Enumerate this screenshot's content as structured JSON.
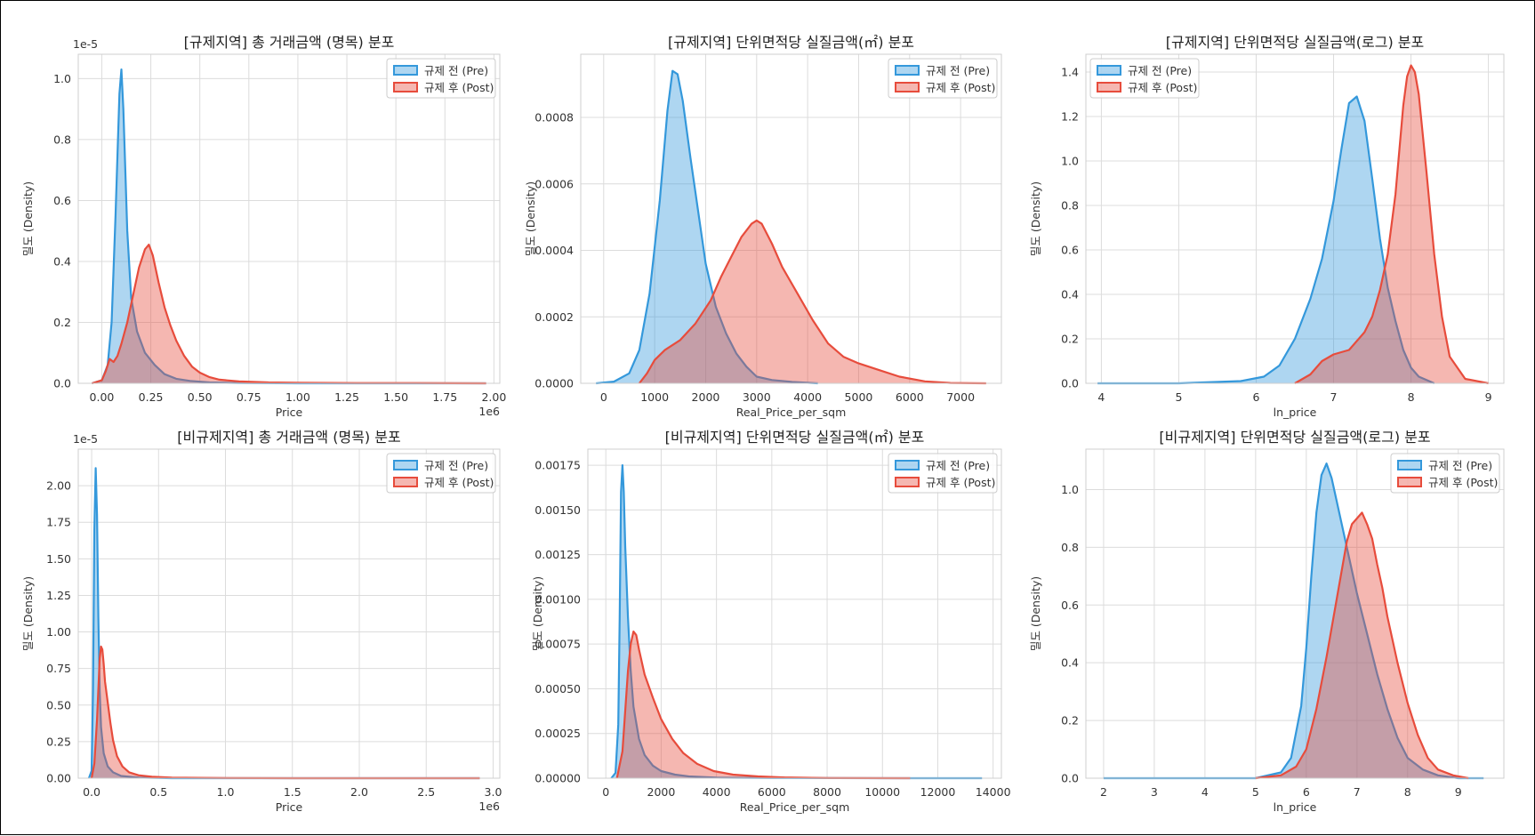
{
  "colors": {
    "pre": "#3498db",
    "post": "#e74c3c",
    "grid": "#dcdcdc",
    "spine": "#cfcfcf"
  },
  "chart_data": [
    {
      "type": "area",
      "title": "[규제지역] 총 거래금액 (명목) 분포",
      "xlabel": "Price",
      "ylabel": "밀도 (Density)",
      "x_offset": "1e6",
      "y_offset": "1e-5",
      "xlim": [
        -0.12,
        2.03
      ],
      "ylim": [
        0,
        1.08
      ],
      "xticks": [
        0,
        0.25,
        0.5,
        0.75,
        1.0,
        1.25,
        1.5,
        1.75,
        2.0
      ],
      "xtick_labels": [
        "0.00",
        "0.25",
        "0.50",
        "0.75",
        "1.00",
        "1.25",
        "1.50",
        "1.75",
        "2.00"
      ],
      "yticks": [
        0,
        0.2,
        0.4,
        0.6,
        0.8,
        1.0
      ],
      "ytick_labels": [
        "0.0",
        "0.2",
        "0.4",
        "0.6",
        "0.8",
        "1.0"
      ],
      "legend_position": "upper right",
      "series": [
        {
          "name": "규제 전 (Pre)",
          "x": [
            -0.05,
            0.0,
            0.03,
            0.05,
            0.07,
            0.09,
            0.1,
            0.11,
            0.13,
            0.15,
            0.18,
            0.22,
            0.27,
            0.32,
            0.38,
            0.45,
            0.55,
            0.7,
            1.0,
            1.5,
            1.96
          ],
          "y": [
            0,
            0.01,
            0.06,
            0.2,
            0.55,
            0.95,
            1.03,
            0.9,
            0.5,
            0.28,
            0.17,
            0.1,
            0.06,
            0.03,
            0.015,
            0.008,
            0.003,
            0.001,
            0,
            0,
            0
          ]
        },
        {
          "name": "규제 후 (Post)",
          "x": [
            -0.05,
            0.0,
            0.02,
            0.04,
            0.06,
            0.08,
            0.1,
            0.13,
            0.16,
            0.19,
            0.22,
            0.24,
            0.26,
            0.29,
            0.32,
            0.35,
            0.38,
            0.42,
            0.46,
            0.5,
            0.55,
            0.6,
            0.7,
            0.85,
            1.0,
            1.3,
            1.6,
            1.96
          ],
          "y": [
            0,
            0.01,
            0.04,
            0.08,
            0.07,
            0.09,
            0.13,
            0.2,
            0.29,
            0.38,
            0.44,
            0.455,
            0.42,
            0.33,
            0.25,
            0.19,
            0.14,
            0.09,
            0.055,
            0.035,
            0.02,
            0.012,
            0.006,
            0.003,
            0.002,
            0.001,
            0.001,
            0
          ]
        }
      ]
    },
    {
      "type": "area",
      "title": "[규제지역] 단위면적당 실질금액(㎡) 분포",
      "xlabel": "Real_Price_per_sqm",
      "ylabel": "밀도 (Density)",
      "x_offset": "",
      "y_offset": "",
      "xlim": [
        -450,
        7800
      ],
      "ylim": [
        0,
        0.00099
      ],
      "xticks": [
        0,
        1000,
        2000,
        3000,
        4000,
        5000,
        6000,
        7000
      ],
      "xtick_labels": [
        "0",
        "1000",
        "2000",
        "3000",
        "4000",
        "5000",
        "6000",
        "7000"
      ],
      "yticks": [
        0,
        0.0002,
        0.0004,
        0.0006,
        0.0008
      ],
      "ytick_labels": [
        "0.0000",
        "0.0002",
        "0.0004",
        "0.0006",
        "0.0008"
      ],
      "legend_position": "upper right",
      "series": [
        {
          "name": "규제 전 (Pre)",
          "x": [
            -150,
            200,
            500,
            700,
            900,
            1100,
            1250,
            1350,
            1450,
            1550,
            1700,
            1850,
            2000,
            2200,
            2400,
            2600,
            2800,
            3000,
            3300,
            3700,
            4200
          ],
          "y": [
            0,
            5e-06,
            3e-05,
            0.0001,
            0.00027,
            0.00055,
            0.00082,
            0.00094,
            0.00093,
            0.00085,
            0.00068,
            0.00052,
            0.00036,
            0.00023,
            0.00015,
            9e-05,
            5e-05,
            2e-05,
            1e-05,
            4e-06,
            0
          ]
        },
        {
          "name": "규제 후 (Post)",
          "x": [
            700,
            850,
            1000,
            1200,
            1500,
            1800,
            2100,
            2300,
            2500,
            2700,
            2900,
            3000,
            3100,
            3300,
            3500,
            3800,
            4100,
            4400,
            4700,
            5000,
            5400,
            5800,
            6300,
            6800,
            7500
          ],
          "y": [
            0,
            3e-05,
            7e-05,
            0.0001,
            0.00013,
            0.00018,
            0.00025,
            0.00032,
            0.00038,
            0.00044,
            0.00048,
            0.00049,
            0.00048,
            0.00042,
            0.00035,
            0.00027,
            0.00019,
            0.00012,
            8e-05,
            6e-05,
            4e-05,
            2e-05,
            6e-06,
            1e-06,
            0
          ]
        }
      ]
    },
    {
      "type": "area",
      "title": "[규제지역] 단위면적당 실질금액(로그) 분포",
      "xlabel": "ln_price",
      "ylabel": "밀도 (Density)",
      "x_offset": "",
      "y_offset": "",
      "xlim": [
        3.8,
        9.2
      ],
      "ylim": [
        0,
        1.48
      ],
      "xticks": [
        4,
        5,
        6,
        7,
        8,
        9
      ],
      "xtick_labels": [
        "4",
        "5",
        "6",
        "7",
        "8",
        "9"
      ],
      "yticks": [
        0,
        0.2,
        0.4,
        0.6,
        0.8,
        1.0,
        1.2,
        1.4
      ],
      "ytick_labels": [
        "0.0",
        "0.2",
        "0.4",
        "0.6",
        "0.8",
        "1.0",
        "1.2",
        "1.4"
      ],
      "legend_position": "upper left",
      "series": [
        {
          "name": "규제 전 (Pre)",
          "x": [
            3.95,
            5.0,
            5.8,
            6.1,
            6.3,
            6.5,
            6.7,
            6.85,
            7.0,
            7.1,
            7.2,
            7.3,
            7.4,
            7.5,
            7.6,
            7.7,
            7.8,
            7.9,
            8.0,
            8.1,
            8.3
          ],
          "y": [
            0,
            0,
            0.01,
            0.03,
            0.08,
            0.2,
            0.38,
            0.56,
            0.82,
            1.05,
            1.26,
            1.29,
            1.18,
            0.92,
            0.65,
            0.43,
            0.28,
            0.15,
            0.07,
            0.03,
            0
          ]
        },
        {
          "name": "규제 후 (Post)",
          "x": [
            6.5,
            6.7,
            6.85,
            7.0,
            7.2,
            7.4,
            7.5,
            7.6,
            7.7,
            7.8,
            7.85,
            7.9,
            7.95,
            8.0,
            8.05,
            8.1,
            8.2,
            8.3,
            8.4,
            8.5,
            8.7,
            9.0
          ],
          "y": [
            0,
            0.04,
            0.1,
            0.13,
            0.15,
            0.23,
            0.3,
            0.42,
            0.58,
            0.85,
            1.05,
            1.25,
            1.38,
            1.43,
            1.4,
            1.3,
            0.95,
            0.58,
            0.3,
            0.12,
            0.02,
            0
          ]
        }
      ]
    },
    {
      "type": "area",
      "title": "[비규제지역] 총 거래금액 (명목) 분포",
      "xlabel": "Price",
      "ylabel": "밀도 (Density)",
      "x_offset": "1e6",
      "y_offset": "1e-5",
      "xlim": [
        -0.1,
        3.05
      ],
      "ylim": [
        0,
        2.25
      ],
      "xticks": [
        0,
        0.5,
        1.0,
        1.5,
        2.0,
        2.5,
        3.0
      ],
      "xtick_labels": [
        "0.0",
        "0.5",
        "1.0",
        "1.5",
        "2.0",
        "2.5",
        "3.0"
      ],
      "yticks": [
        0,
        0.25,
        0.5,
        0.75,
        1.0,
        1.25,
        1.5,
        1.75,
        2.0
      ],
      "ytick_labels": [
        "0.00",
        "0.25",
        "0.50",
        "0.75",
        "1.00",
        "1.25",
        "1.50",
        "1.75",
        "2.00"
      ],
      "legend_position": "upper right",
      "series": [
        {
          "name": "규제 전 (Pre)",
          "x": [
            -0.02,
            0.0,
            0.01,
            0.02,
            0.03,
            0.04,
            0.05,
            0.06,
            0.07,
            0.09,
            0.12,
            0.16,
            0.22,
            0.35,
            0.6,
            1.0,
            2.9
          ],
          "y": [
            0,
            0.05,
            0.6,
            1.7,
            2.12,
            1.8,
            1.1,
            0.6,
            0.35,
            0.17,
            0.08,
            0.04,
            0.015,
            0.004,
            0,
            0,
            0
          ]
        },
        {
          "name": "규제 후 (Post)",
          "x": [
            0.0,
            0.02,
            0.04,
            0.06,
            0.07,
            0.08,
            0.09,
            0.1,
            0.12,
            0.14,
            0.16,
            0.19,
            0.23,
            0.28,
            0.35,
            0.45,
            0.6,
            1.0,
            1.5,
            2.0,
            2.9
          ],
          "y": [
            0,
            0.1,
            0.4,
            0.82,
            0.9,
            0.88,
            0.78,
            0.66,
            0.52,
            0.38,
            0.26,
            0.15,
            0.08,
            0.04,
            0.02,
            0.01,
            0.004,
            0.001,
            0,
            0,
            0
          ]
        }
      ]
    },
    {
      "type": "area",
      "title": "[비규제지역] 단위면적당 실질금액(㎡) 분포",
      "xlabel": "Real_Price_per_sqm",
      "ylabel": "밀도 (Density)",
      "x_offset": "",
      "y_offset": "",
      "xlim": [
        -650,
        14300
      ],
      "ylim": [
        0,
        0.00184
      ],
      "xticks": [
        0,
        2000,
        4000,
        6000,
        8000,
        10000,
        12000,
        14000
      ],
      "xtick_labels": [
        "0",
        "2000",
        "4000",
        "6000",
        "8000",
        "10000",
        "12000",
        "14000"
      ],
      "yticks": [
        0,
        0.00025,
        0.0005,
        0.00075,
        0.001,
        0.00125,
        0.0015,
        0.00175
      ],
      "ytick_labels": [
        "0.00000",
        "0.00025",
        "0.00050",
        "0.00075",
        "0.00100",
        "0.00125",
        "0.00150",
        "0.00175"
      ],
      "legend_position": "upper right",
      "series": [
        {
          "name": "규제 전 (Pre)",
          "x": [
            200,
            350,
            450,
            500,
            550,
            600,
            650,
            700,
            800,
            900,
            1000,
            1200,
            1400,
            1700,
            2000,
            2500,
            3000,
            4000,
            6000,
            10000,
            13600
          ],
          "y": [
            0,
            3e-05,
            0.0003,
            0.0009,
            0.0016,
            0.00175,
            0.0016,
            0.0013,
            0.0009,
            0.0006,
            0.0004,
            0.00022,
            0.00013,
            7e-05,
            4e-05,
            2e-05,
            1e-05,
            3e-06,
            1e-06,
            0,
            0
          ]
        },
        {
          "name": "규제 후 (Post)",
          "x": [
            400,
            600,
            800,
            900,
            1000,
            1100,
            1200,
            1400,
            1700,
            2000,
            2400,
            2800,
            3300,
            3900,
            4600,
            5500,
            6500,
            8000,
            11000
          ],
          "y": [
            0,
            0.00015,
            0.0006,
            0.00075,
            0.00082,
            0.0008,
            0.00072,
            0.00058,
            0.00045,
            0.00033,
            0.00022,
            0.00014,
            8e-05,
            4e-05,
            2e-05,
            1e-05,
            4e-06,
            1e-06,
            0
          ]
        }
      ]
    },
    {
      "type": "area",
      "title": "[비규제지역] 단위면적당 실질금액(로그) 분포",
      "xlabel": "ln_price",
      "ylabel": "밀도 (Density)",
      "x_offset": "",
      "y_offset": "",
      "xlim": [
        1.65,
        9.9
      ],
      "ylim": [
        0,
        1.14
      ],
      "xticks": [
        2,
        3,
        4,
        5,
        6,
        7,
        8,
        9
      ],
      "xtick_labels": [
        "2",
        "3",
        "4",
        "5",
        "6",
        "7",
        "8",
        "9"
      ],
      "yticks": [
        0,
        0.2,
        0.4,
        0.6,
        0.8,
        1.0
      ],
      "ytick_labels": [
        "0.0",
        "0.2",
        "0.4",
        "0.6",
        "0.8",
        "1.0"
      ],
      "legend_position": "upper right",
      "series": [
        {
          "name": "규제 전 (Pre)",
          "x": [
            2.0,
            4.0,
            5.0,
            5.5,
            5.7,
            5.9,
            6.0,
            6.1,
            6.2,
            6.3,
            6.4,
            6.5,
            6.6,
            6.8,
            7.0,
            7.2,
            7.4,
            7.6,
            7.8,
            8.0,
            8.3,
            8.6,
            9.0,
            9.5
          ],
          "y": [
            0,
            0,
            0,
            0.02,
            0.07,
            0.25,
            0.45,
            0.7,
            0.92,
            1.05,
            1.09,
            1.04,
            0.96,
            0.8,
            0.64,
            0.5,
            0.36,
            0.24,
            0.14,
            0.07,
            0.03,
            0.01,
            0,
            0
          ]
        },
        {
          "name": "규제 후 (Post)",
          "x": [
            5.0,
            5.5,
            5.8,
            6.0,
            6.2,
            6.4,
            6.6,
            6.8,
            6.9,
            7.0,
            7.1,
            7.2,
            7.3,
            7.4,
            7.5,
            7.6,
            7.8,
            8.0,
            8.2,
            8.4,
            8.6,
            8.9,
            9.2
          ],
          "y": [
            0,
            0.01,
            0.04,
            0.1,
            0.24,
            0.42,
            0.62,
            0.82,
            0.88,
            0.9,
            0.92,
            0.88,
            0.83,
            0.74,
            0.66,
            0.56,
            0.4,
            0.26,
            0.15,
            0.07,
            0.03,
            0.01,
            0
          ]
        }
      ]
    }
  ]
}
